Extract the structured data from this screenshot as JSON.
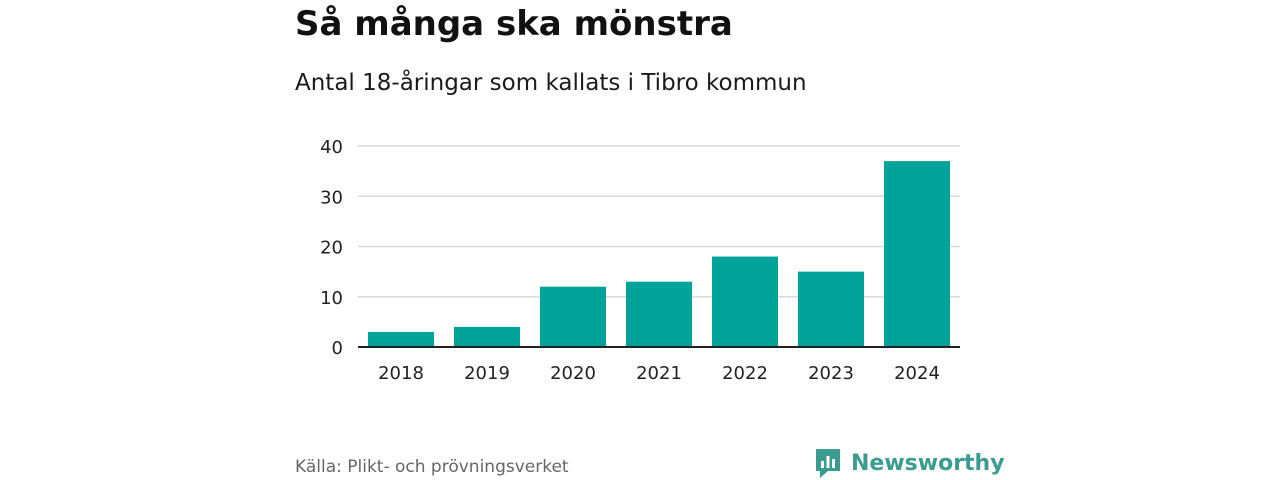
{
  "header": {
    "title": "Så många ska mönstra",
    "subtitle": "Antal 18-åringar som kallats i Tibro kommun"
  },
  "footer": {
    "source": "Källa: Plikt- och prövningsverket",
    "brand_name": "Newsworthy",
    "brand_icon": "newsworthy-logo-icon"
  },
  "colors": {
    "bar": "#00a39a",
    "grid": "#d9d9d9",
    "axis": "#222222",
    "brand": "#3a9c8f"
  },
  "chart_data": {
    "type": "bar",
    "categories": [
      "2018",
      "2019",
      "2020",
      "2021",
      "2022",
      "2023",
      "2024"
    ],
    "values": [
      3,
      4,
      12,
      13,
      18,
      15,
      37
    ],
    "yticks": [
      "0",
      "10",
      "20",
      "30",
      "40"
    ],
    "ylim": [
      0,
      40
    ],
    "grid": true,
    "legend": "none"
  }
}
